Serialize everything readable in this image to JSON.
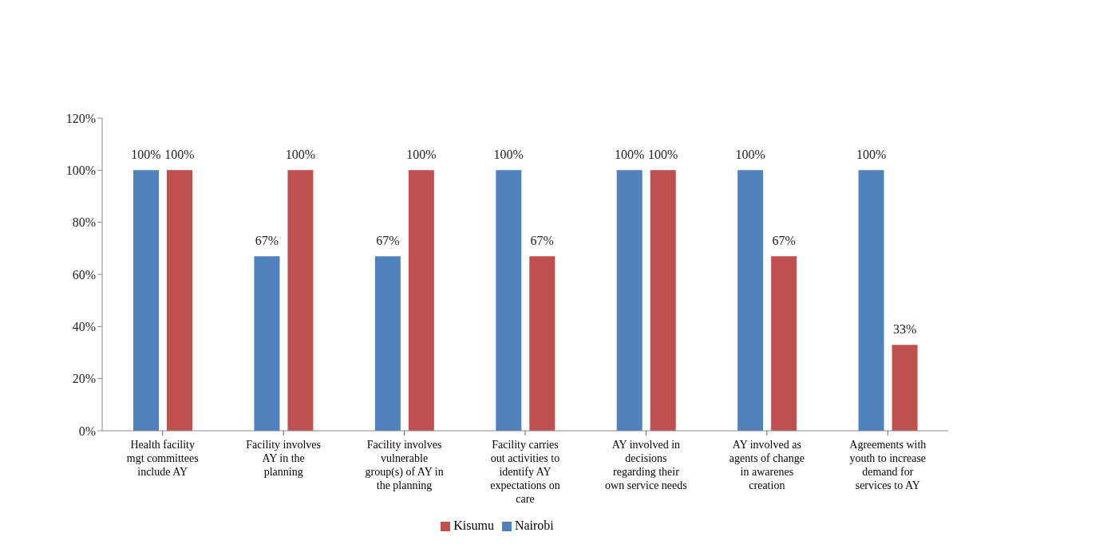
{
  "chart_data": {
    "type": "bar",
    "categories": [
      "Health facility mgt committees include AY",
      "Facility involves AY in the planning",
      "Facility involves vulnerable group(s) of AY in the planning",
      "Facility carries out activities to identify AY expectations on care",
      "AY involved in decisions regarding their own service needs",
      "AY involved as agents of change in awarenes creation",
      "Agreements with youth to increase demand for services to  AY"
    ],
    "series": [
      {
        "name": "Nairobi",
        "color": "#4f81bd",
        "values": [
          100,
          67,
          67,
          100,
          100,
          100,
          100
        ],
        "value_labels": [
          "100%",
          "67%",
          "67%",
          "100%",
          "100%",
          "100%",
          "100%"
        ]
      },
      {
        "name": "Kisumu",
        "color": "#c0504d",
        "values": [
          100,
          100,
          100,
          67,
          100,
          67,
          33
        ],
        "value_labels": [
          "100%",
          "100%",
          "100%",
          "67%",
          "100%",
          "67%",
          "33%"
        ]
      }
    ],
    "ylim": [
      0,
      120
    ],
    "yticks": [
      {
        "value": 0,
        "label": "0%"
      },
      {
        "value": 20,
        "label": "20%"
      },
      {
        "value": 40,
        "label": "40%"
      },
      {
        "value": 60,
        "label": "60%"
      },
      {
        "value": 80,
        "label": "80%"
      },
      {
        "value": 100,
        "label": "100%"
      },
      {
        "value": 120,
        "label": "120%"
      }
    ],
    "grid": false,
    "legend": "bottom"
  }
}
